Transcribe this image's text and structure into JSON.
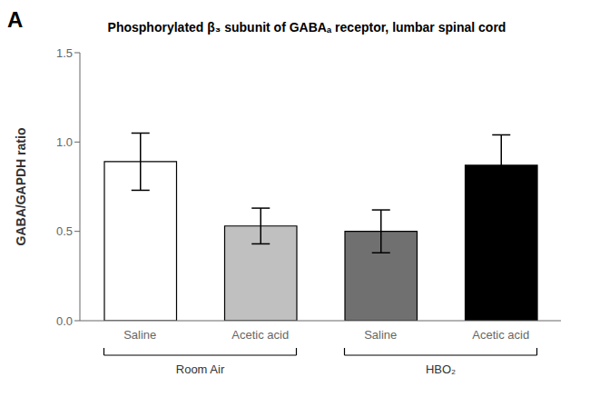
{
  "chart_data": {
    "type": "bar",
    "title": "Phosphorylated β₃ subunit of GABAₐ receptor, lumbar spinal cord",
    "ylabel": "GABA/GAPDH ratio",
    "panel_label": "A",
    "categories": [
      "Saline",
      "Acetic acid",
      "Saline",
      "Acetic acid"
    ],
    "values": [
      0.89,
      0.53,
      0.5,
      0.87
    ],
    "errors": [
      0.16,
      0.1,
      0.12,
      0.17
    ],
    "colors": [
      "#ffffff",
      "#c0c0c0",
      "#707070",
      "#000000"
    ],
    "group_labels": [
      "Room Air",
      "HBO₂"
    ],
    "ylim": [
      0.0,
      1.5
    ],
    "yticks": [
      {
        "value": 0.0,
        "label": "0.0"
      },
      {
        "value": 0.5,
        "label": "0.5"
      },
      {
        "value": 1.0,
        "label": "1.0"
      },
      {
        "value": 1.5,
        "label": "1.5"
      }
    ],
    "grid": false
  }
}
